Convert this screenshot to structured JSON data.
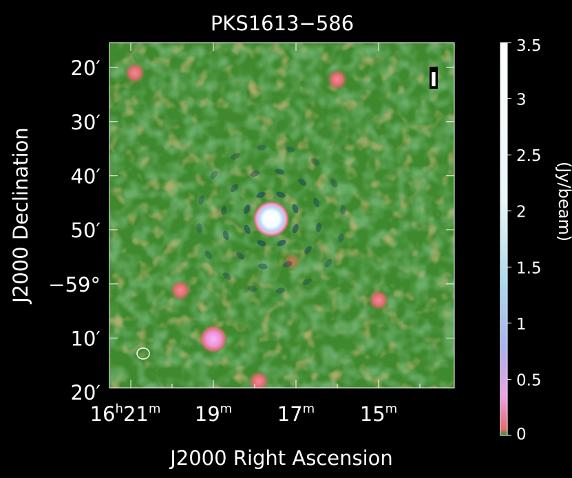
{
  "chart_data": {
    "type": "heatmap",
    "title": "PKS1613−586",
    "xlabel": "J2000 Right Ascension",
    "ylabel": "J2000 Declination",
    "colorbar_label": "(Jy/beam)",
    "stokes_label": "I",
    "x_ticks": [
      {
        "h": "16",
        "m": "21"
      },
      {
        "h": "",
        "m": "19"
      },
      {
        "h": "",
        "m": "17"
      },
      {
        "h": "",
        "m": "15"
      }
    ],
    "y_ticks": [
      {
        "label": "20′",
        "dec": -58.333
      },
      {
        "label": "30′",
        "dec": -58.5
      },
      {
        "label": "40′",
        "dec": -58.667
      },
      {
        "label": "50′",
        "dec": -58.833
      },
      {
        "label": "−59°",
        "dec": -59.0
      },
      {
        "label": "10′",
        "dec": -59.167
      },
      {
        "label": "20′",
        "dec": -59.333
      }
    ],
    "colorbar_ticks": [
      "0",
      "0.5",
      "1",
      "1.5",
      "2",
      "2.5",
      "3",
      "3.5"
    ],
    "colorbar_range": [
      0,
      3.5
    ],
    "colormap": [
      "#2a8a2a",
      "#e86a6a",
      "#f0a0e8",
      "#aab0f0",
      "#a8d8f0",
      "#e8f8f8",
      "#ffffff"
    ],
    "background_color": "#3f8a2e",
    "sources": [
      {
        "ra_min": 17.6,
        "dec": -58.8,
        "flux": 3.5
      },
      {
        "ra_min": 19.0,
        "dec": -59.17,
        "flux": 0.5
      },
      {
        "ra_min": 17.9,
        "dec": -59.3,
        "flux": 0.25
      },
      {
        "ra_min": 20.9,
        "dec": -58.35,
        "flux": 0.15
      },
      {
        "ra_min": 16.0,
        "dec": -58.37,
        "flux": 0.15
      },
      {
        "ra_min": 19.8,
        "dec": -59.02,
        "flux": 0.15
      },
      {
        "ra_min": 15.0,
        "dec": -59.05,
        "flux": 0.2
      },
      {
        "ra_min": 17.1,
        "dec": -58.93,
        "flux": 0.08
      }
    ]
  }
}
